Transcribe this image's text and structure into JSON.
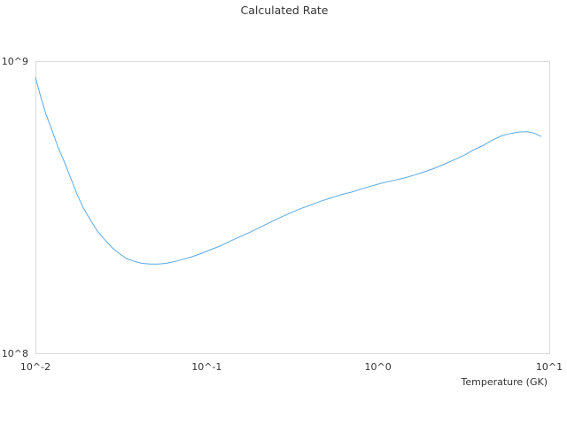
{
  "chart_data": {
    "type": "line",
    "title": "Calculated Rate",
    "xlabel": "Temperature (GK)",
    "ylabel": "",
    "x_scale": "log",
    "y_scale": "log",
    "xlim": [
      0.01,
      10
    ],
    "ylim": [
      100000000,
      1000000000
    ],
    "x_ticks": [
      "10^-2",
      "10^-1",
      "10^0",
      "10^1"
    ],
    "y_ticks": [
      "10^8",
      "10^9"
    ],
    "grid": false,
    "legend": "none",
    "colors": {
      "line": "#5aa9e6",
      "frame": "#d9d9d9",
      "text": "#333333"
    },
    "series": [
      {
        "x": [
          0.01,
          0.0107,
          0.0115,
          0.0125,
          0.0135,
          0.0148,
          0.016,
          0.0175,
          0.019,
          0.021,
          0.023,
          0.0255,
          0.028,
          0.031,
          0.034,
          0.038,
          0.042,
          0.047,
          0.052,
          0.058,
          0.065,
          0.073,
          0.082,
          0.092,
          0.105,
          0.12,
          0.135,
          0.155,
          0.175,
          0.2,
          0.23,
          0.26,
          0.3,
          0.35,
          0.4,
          0.46,
          0.53,
          0.6,
          0.7,
          0.8,
          0.92,
          1.05,
          1.2,
          1.4,
          1.6,
          1.85,
          2.1,
          2.4,
          2.75,
          3.2,
          3.6,
          4.1,
          4.6,
          5.3,
          6.0,
          6.7,
          7.5,
          8.2,
          9.0
        ],
        "y": [
          880000000,
          760000000,
          660000000,
          580000000,
          510000000,
          450000000,
          400000000,
          350000000,
          315000000,
          285000000,
          262000000,
          244000000,
          230000000,
          219000000,
          211000000,
          206000000,
          203000000,
          202000000,
          202000000,
          203000000,
          206000000,
          210000000,
          214000000,
          219000000,
          226000000,
          233000000,
          241000000,
          250000000,
          258000000,
          268000000,
          279000000,
          289000000,
          300000000,
          312000000,
          321000000,
          331000000,
          340000000,
          348000000,
          356000000,
          365000000,
          374000000,
          382000000,
          389000000,
          397000000,
          406000000,
          417000000,
          428000000,
          442000000,
          458000000,
          477000000,
          496000000,
          514000000,
          535000000,
          556000000,
          566000000,
          572000000,
          573000000,
          566000000,
          552000000
        ]
      }
    ]
  }
}
